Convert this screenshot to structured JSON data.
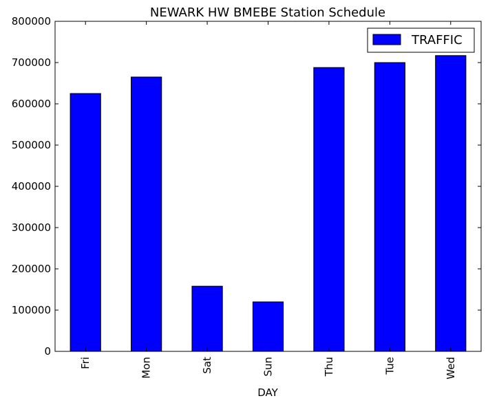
{
  "chart_data": {
    "type": "bar",
    "title": "NEWARK HW BMEBE Station Schedule",
    "xlabel": "DAY",
    "ylabel": "",
    "categories": [
      "Fri",
      "Mon",
      "Sat",
      "Sun",
      "Thu",
      "Tue",
      "Wed"
    ],
    "series": [
      {
        "name": "TRAFFIC",
        "color": "#0000ff",
        "values": [
          625000,
          665000,
          158000,
          120000,
          688000,
          700000,
          717000
        ]
      }
    ],
    "ylim": [
      0,
      800000
    ],
    "yticks": [
      "0",
      "100000",
      "200000",
      "300000",
      "400000",
      "500000",
      "600000",
      "700000",
      "800000"
    ],
    "grid": false,
    "legend_position": "top-right"
  }
}
